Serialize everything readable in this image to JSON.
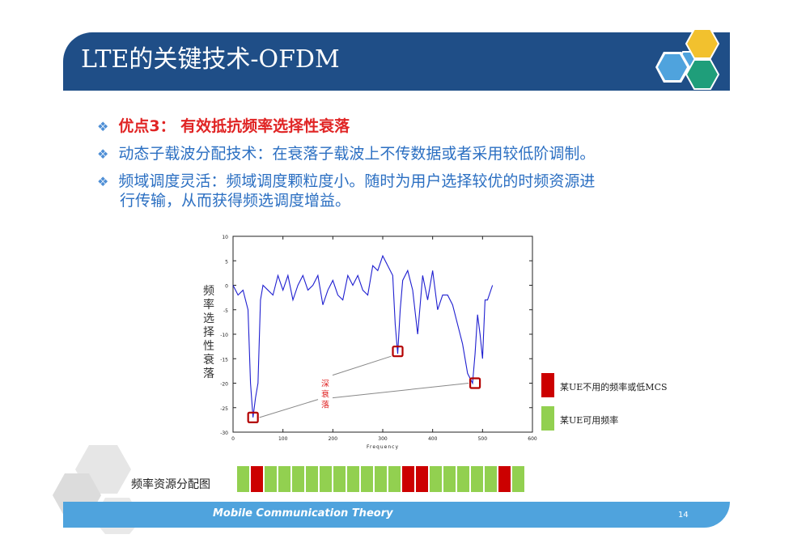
{
  "slide": {
    "title": "LTE的关键技术-OFDM",
    "bullets": [
      "优点3： 有效抵抗频率选择性衰落",
      "动态子载波分配技术：在衰落子载波上不传数据或者采用较低阶调制。",
      "频域调度灵活：频域调度颗粒度小。随时为用户选择较优的时频资源进"
    ],
    "bullet3_cont": "行传输，从而获得频选调度增益。",
    "bullet_icon": "diamond-bullet-icon"
  },
  "chart_data": {
    "type": "line",
    "xlabel": "Frequency",
    "ylabel": "频率选择性衰落",
    "xlim": [
      0,
      600
    ],
    "ylim": [
      -30,
      10
    ],
    "xticks": [
      "0",
      "100",
      "200",
      "300",
      "400",
      "500",
      "600"
    ],
    "yticks": [
      "10",
      "5",
      "0",
      "-5",
      "-10",
      "-15",
      "-20",
      "-25",
      "-30"
    ],
    "series": [
      {
        "color": "#1f1fd0",
        "x": [
          0,
          10,
          20,
          30,
          35,
          40,
          45,
          50,
          55,
          60,
          70,
          80,
          90,
          100,
          110,
          120,
          130,
          140,
          150,
          160,
          170,
          180,
          190,
          200,
          210,
          220,
          230,
          240,
          250,
          260,
          270,
          280,
          290,
          300,
          310,
          320,
          325,
          330,
          335,
          340,
          350,
          360,
          370,
          380,
          390,
          400,
          410,
          420,
          430,
          440,
          450,
          460,
          470,
          480,
          485,
          490,
          495,
          500,
          505,
          510,
          520
        ],
        "y": [
          0,
          -2,
          -1,
          -5,
          -20,
          -27,
          -23,
          -20,
          -3,
          0,
          -1,
          -2,
          2,
          -1,
          2,
          -3,
          0,
          2,
          -1,
          0,
          2,
          -4,
          -1,
          1,
          -2,
          -3,
          2,
          0,
          2,
          -1,
          -2,
          4,
          3,
          6,
          4,
          2,
          -8,
          -14,
          -5,
          1,
          3,
          -1,
          -10,
          2,
          -3,
          3,
          -5,
          -2,
          -2,
          -4,
          -8,
          -12,
          -18,
          -20,
          -14,
          -6,
          -10,
          -15,
          -3,
          -3,
          0
        ]
      }
    ],
    "annotations": {
      "deep_fade_label": [
        "深",
        "衰",
        "落"
      ],
      "markers_x": [
        40,
        330,
        485
      ],
      "markers_y": [
        -27,
        -13.5,
        -20
      ],
      "label_at": [
        180,
        -23
      ]
    }
  },
  "legend": {
    "items": [
      {
        "color": "#cc0000",
        "label": "某UE不用的频率或低MCS"
      },
      {
        "color": "#92d050",
        "label": "某UE可用频率"
      }
    ]
  },
  "resource": {
    "label": "频率资源分配图",
    "cells": [
      "g",
      "r",
      "g",
      "g",
      "g",
      "g",
      "g",
      "g",
      "g",
      "g",
      "g",
      "g",
      "r",
      "r",
      "g",
      "g",
      "g",
      "g",
      "g",
      "r",
      "g"
    ]
  },
  "footer": {
    "title": "Mobile Communication Theory",
    "page": "14"
  },
  "colors": {
    "title_bg": "#1f4e87",
    "footer_bg": "#4fa3dd",
    "bullet_text": "#2b6fc2",
    "highlight_text": "#e02424",
    "red": "#cc0000",
    "green": "#92d050"
  }
}
